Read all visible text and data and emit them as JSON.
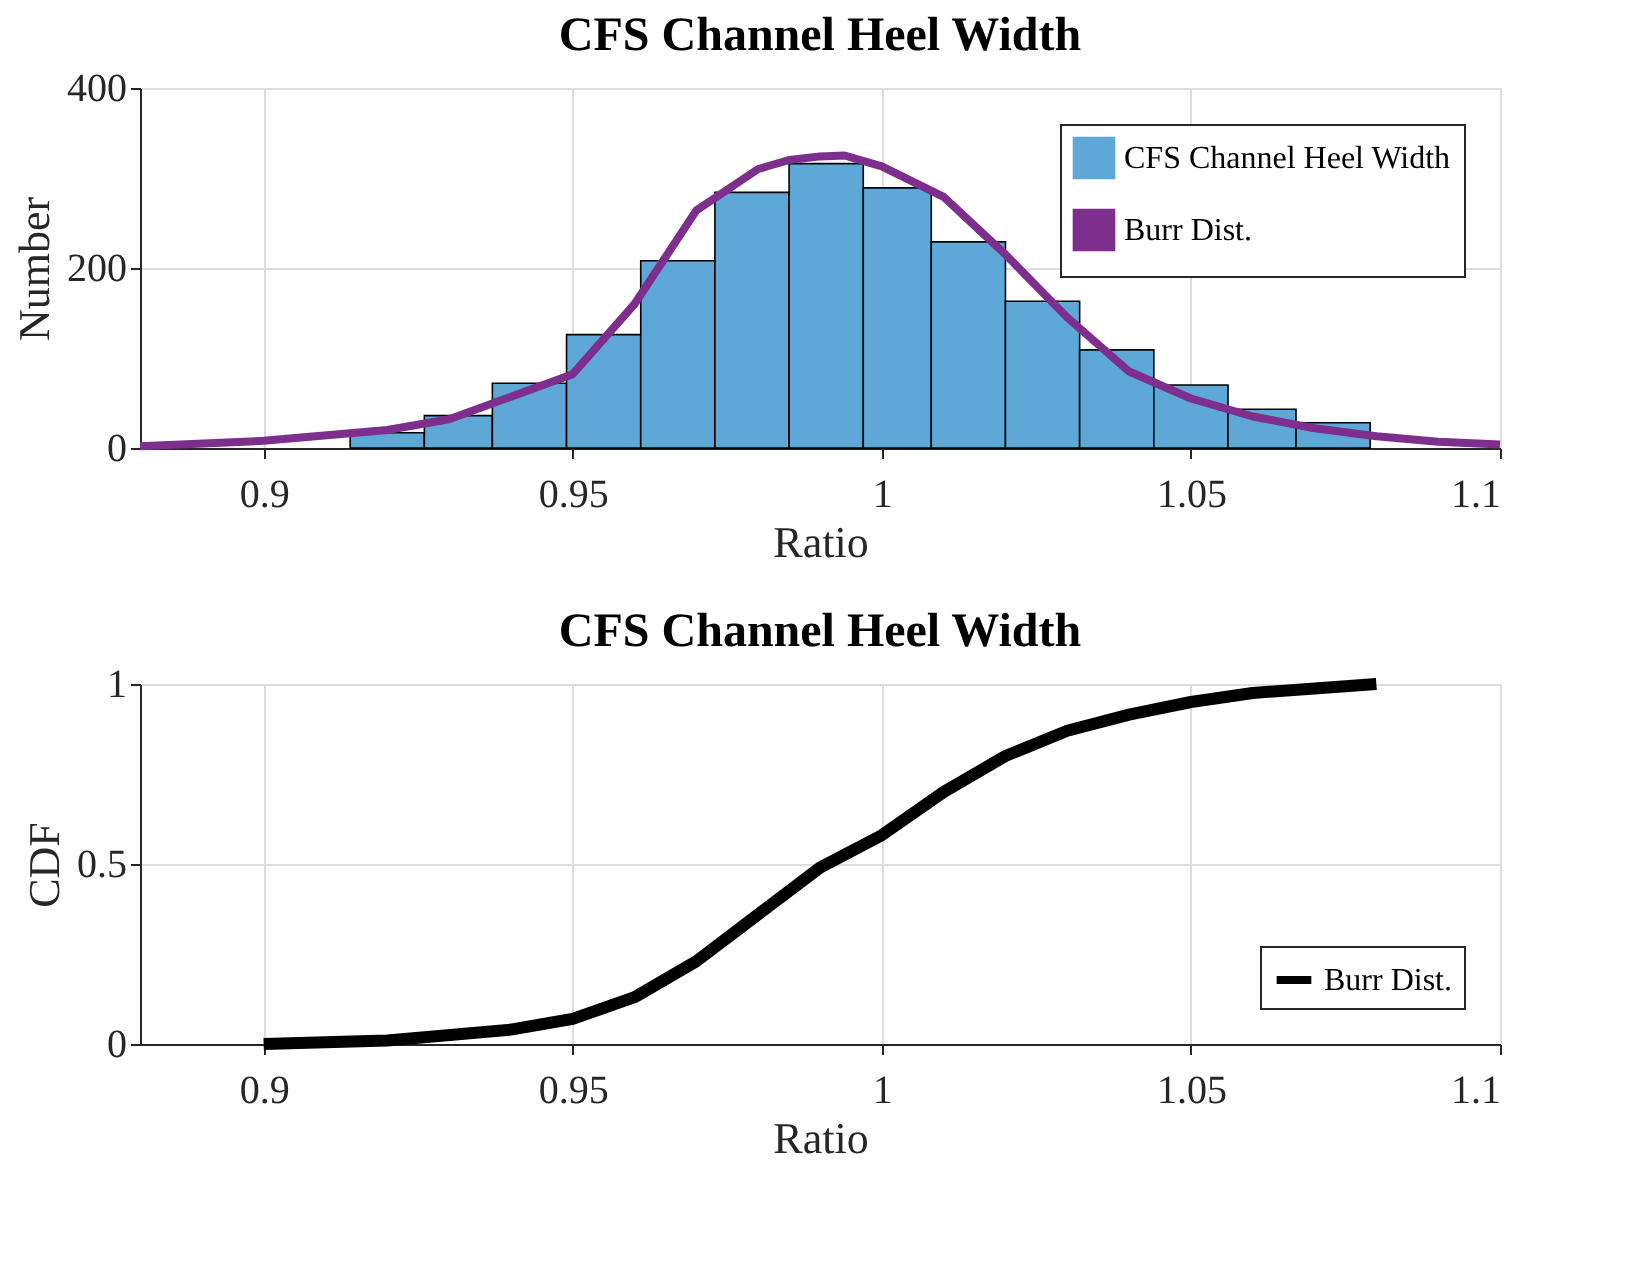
{
  "chart_data": [
    {
      "type": "histogram",
      "title": "CFS Channel Heel Width",
      "xlabel": "Ratio",
      "ylabel": "Number",
      "xlim": [
        0.88,
        1.1
      ],
      "xticks": [
        0.9,
        0.95,
        1,
        1.05,
        1.1
      ],
      "ylim": [
        0,
        400
      ],
      "yticks": [
        0,
        200,
        400
      ],
      "grid": true,
      "legend": "top right",
      "series": [
        {
          "type": "histogram",
          "name": "CFS Channel Heel Width",
          "color": "#5ea8d8",
          "bins": [
            0.914,
            0.926,
            0.937,
            0.949,
            0.961,
            0.973,
            0.985,
            0.997,
            1.008,
            1.02,
            1.032,
            1.044,
            1.056,
            1.067,
            1.079
          ],
          "values": [
            17,
            36,
            72,
            126,
            208,
            284,
            316,
            289,
            229,
            163,
            109,
            70,
            43,
            28
          ]
        },
        {
          "type": "line",
          "name": "Burr Dist.",
          "color": "#7e2f8e",
          "x": [
            0.88,
            0.9,
            0.92,
            0.93,
            0.94,
            0.95,
            0.96,
            0.97,
            0.98,
            0.985,
            0.99,
            0.994,
            1.0,
            1.01,
            1.02,
            1.03,
            1.04,
            1.05,
            1.06,
            1.07,
            1.08,
            1.09,
            1.1
          ],
          "values": [
            2,
            8,
            20,
            32,
            57,
            82,
            160,
            264,
            310,
            320,
            324,
            325,
            313,
            279,
            215,
            145,
            85,
            55,
            35,
            22,
            13,
            7,
            4
          ]
        }
      ]
    },
    {
      "type": "line",
      "title": "CFS Channel Heel Width",
      "xlabel": "Ratio",
      "ylabel": "CDF",
      "xlim": [
        0.88,
        1.1
      ],
      "xticks": [
        0.9,
        0.95,
        1,
        1.05,
        1.1
      ],
      "ylim": [
        0,
        1
      ],
      "yticks": [
        0,
        0.5,
        1
      ],
      "grid": true,
      "legend": "bottom right",
      "series": [
        {
          "type": "line",
          "name": "Burr Dist.",
          "color": "#000000",
          "x": [
            0.9,
            0.92,
            0.94,
            0.95,
            0.96,
            0.97,
            0.98,
            0.99,
            1.0,
            1.01,
            1.02,
            1.03,
            1.04,
            1.05,
            1.06,
            1.08
          ],
          "values": [
            0.0,
            0.01,
            0.04,
            0.07,
            0.13,
            0.23,
            0.36,
            0.49,
            0.58,
            0.7,
            0.8,
            0.87,
            0.915,
            0.95,
            0.975,
            1.0
          ]
        }
      ]
    }
  ]
}
